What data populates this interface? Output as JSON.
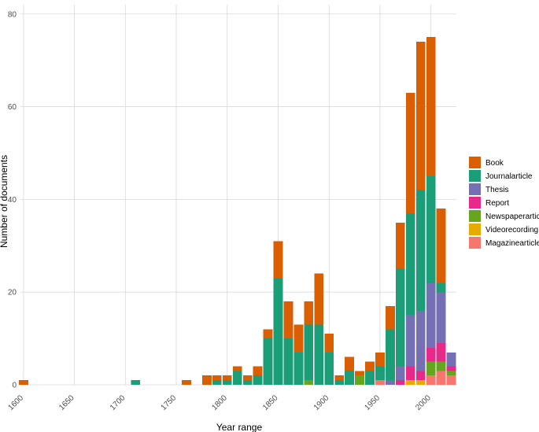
{
  "chart_data": {
    "type": "bar",
    "stacked": true,
    "title": "",
    "xlabel": "Year range",
    "ylabel": "Number of documents",
    "xlim": [
      1597,
      2025
    ],
    "ylim": [
      0,
      82
    ],
    "xticks": [
      1600,
      1650,
      1700,
      1750,
      1800,
      1850,
      1900,
      1950,
      2000
    ],
    "yticks": [
      0,
      20,
      40,
      60,
      80
    ],
    "grid": true,
    "legend_position": "right",
    "bin_width": 10,
    "x": [
      1600,
      1710,
      1760,
      1780,
      1790,
      1800,
      1810,
      1820,
      1830,
      1840,
      1850,
      1860,
      1870,
      1880,
      1890,
      1900,
      1910,
      1920,
      1930,
      1940,
      1950,
      1960,
      1970,
      1980,
      1990,
      2000,
      2010,
      2020
    ],
    "series": [
      {
        "name": "Magazinearticle",
        "color": "#F8766D",
        "values": [
          0,
          0,
          0,
          0,
          0,
          0,
          0,
          0,
          0,
          0,
          0,
          0,
          0,
          0,
          0,
          0,
          0,
          0,
          0,
          0,
          1,
          0,
          0,
          0,
          0,
          2,
          3,
          2
        ]
      },
      {
        "name": "Videorecording",
        "color": "#E6AB02",
        "values": [
          0,
          0,
          0,
          0,
          0,
          0,
          0,
          0,
          0,
          0,
          0,
          0,
          0,
          0,
          0,
          0,
          0,
          0,
          0,
          0,
          0,
          0,
          0,
          1,
          1,
          0,
          0,
          0
        ]
      },
      {
        "name": "Newspaperarticle",
        "color": "#66A61E",
        "values": [
          0,
          0,
          0,
          0,
          0,
          0,
          0,
          0,
          0,
          0,
          0,
          0,
          0,
          1,
          0,
          0,
          0,
          0,
          2,
          0,
          0,
          0,
          0,
          0,
          0,
          3,
          2,
          1
        ]
      },
      {
        "name": "Report",
        "color": "#E7298A",
        "values": [
          0,
          0,
          0,
          0,
          0,
          0,
          0,
          0,
          0,
          0,
          0,
          0,
          0,
          0,
          0,
          0,
          0,
          0,
          0,
          0,
          0,
          0,
          1,
          3,
          2,
          3,
          4,
          1
        ]
      },
      {
        "name": "Thesis",
        "color": "#7570B3",
        "values": [
          0,
          0,
          0,
          0,
          0,
          0,
          0,
          0,
          0,
          0,
          0,
          0,
          0,
          0,
          0,
          0,
          0,
          0,
          0,
          0,
          0,
          1,
          3,
          11,
          13,
          14,
          11,
          3
        ]
      },
      {
        "name": "Journalarticle",
        "color": "#1B9E77",
        "values": [
          0,
          1,
          0,
          0,
          1,
          1,
          3,
          1,
          2,
          10,
          23,
          10,
          7,
          12,
          13,
          7,
          1,
          3,
          0,
          3,
          3,
          11,
          21,
          22,
          26,
          23,
          2,
          0
        ]
      },
      {
        "name": "Book",
        "color": "#D95F02",
        "values": [
          1,
          0,
          1,
          2,
          1,
          1,
          1,
          1,
          2,
          2,
          8,
          8,
          6,
          5,
          11,
          4,
          1,
          3,
          1,
          2,
          3,
          5,
          10,
          26,
          32,
          30,
          16,
          0
        ]
      }
    ],
    "legend_order": [
      "Book",
      "Journalarticle",
      "Thesis",
      "Report",
      "Newspaperarticle",
      "Videorecording",
      "Magazinearticle"
    ]
  }
}
